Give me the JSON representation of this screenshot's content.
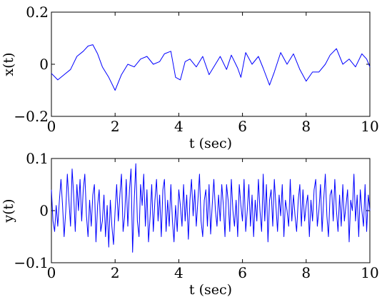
{
  "chart_data": [
    {
      "type": "line",
      "xlabel": "t (sec)",
      "ylabel": "x(t)",
      "xlim": [
        0,
        10
      ],
      "ylim": [
        -0.2,
        0.2
      ],
      "xticks": [
        0,
        2,
        4,
        6,
        8,
        10
      ],
      "yticks": [
        -0.2,
        0,
        0.2
      ],
      "xtick_labels": [
        "0",
        "2",
        "4",
        "6",
        "8",
        "10"
      ],
      "ytick_labels": [
        "−0.2",
        "0",
        "0.2"
      ],
      "grid": false,
      "line_color": "#0000ff",
      "series": [
        {
          "x": [
            0,
            0.2,
            0.4,
            0.6,
            0.8,
            1.0,
            1.15,
            1.3,
            1.45,
            1.6,
            1.8,
            2.0,
            2.2,
            2.4,
            2.6,
            2.8,
            3.0,
            3.2,
            3.4,
            3.55,
            3.75,
            3.9,
            4.05,
            4.2,
            4.35,
            4.55,
            4.75,
            4.95,
            5.15,
            5.3,
            5.5,
            5.65,
            5.85,
            5.95,
            6.1,
            6.3,
            6.5,
            6.65,
            6.85,
            7.0,
            7.2,
            7.4,
            7.6,
            7.8,
            8.0,
            8.2,
            8.4,
            8.6,
            8.75,
            8.95,
            9.15,
            9.35,
            9.55,
            9.75,
            9.9,
            10.0
          ],
          "y": [
            -0.035,
            -0.06,
            -0.04,
            -0.02,
            0.03,
            0.05,
            0.07,
            0.075,
            0.04,
            -0.01,
            -0.05,
            -0.1,
            -0.04,
            0.0,
            -0.01,
            0.02,
            0.03,
            0.0,
            0.01,
            0.04,
            0.05,
            -0.05,
            -0.06,
            0.01,
            0.02,
            -0.01,
            0.03,
            -0.04,
            0.0,
            0.03,
            -0.02,
            0.035,
            -0.015,
            -0.05,
            0.045,
            0.0,
            0.03,
            -0.015,
            -0.08,
            -0.03,
            0.045,
            0.0,
            0.04,
            -0.02,
            -0.065,
            -0.03,
            -0.03,
            0.0,
            0.035,
            0.06,
            0.0,
            0.02,
            -0.01,
            0.04,
            0.02,
            -0.01
          ]
        }
      ]
    },
    {
      "type": "line",
      "xlabel": "t (sec)",
      "ylabel": "y(t)",
      "xlim": [
        0,
        10
      ],
      "ylim": [
        -0.1,
        0.1
      ],
      "xticks": [
        0,
        2,
        4,
        6,
        8,
        10
      ],
      "yticks": [
        -0.1,
        0,
        0.1
      ],
      "xtick_labels": [
        "0",
        "2",
        "4",
        "6",
        "8",
        "10"
      ],
      "ytick_labels": [
        "−0.1",
        "0",
        "0.1"
      ],
      "grid": false,
      "line_color": "#0000ff",
      "series": [
        {
          "x": [
            0.0,
            0.05,
            0.1,
            0.15,
            0.2,
            0.25,
            0.3,
            0.35,
            0.4,
            0.45,
            0.5,
            0.55,
            0.6,
            0.65,
            0.7,
            0.75,
            0.8,
            0.85,
            0.9,
            0.95,
            1.0,
            1.05,
            1.1,
            1.15,
            1.2,
            1.25,
            1.3,
            1.35,
            1.4,
            1.45,
            1.5,
            1.55,
            1.6,
            1.65,
            1.7,
            1.75,
            1.8,
            1.85,
            1.9,
            1.95,
            2.0,
            2.05,
            2.1,
            2.15,
            2.2,
            2.25,
            2.3,
            2.35,
            2.4,
            2.45,
            2.5,
            2.55,
            2.6,
            2.65,
            2.7,
            2.75,
            2.8,
            2.85,
            2.9,
            2.95,
            3.0,
            3.05,
            3.1,
            3.15,
            3.2,
            3.25,
            3.3,
            3.35,
            3.4,
            3.45,
            3.5,
            3.55,
            3.6,
            3.65,
            3.7,
            3.75,
            3.8,
            3.85,
            3.9,
            3.95,
            4.0,
            4.05,
            4.1,
            4.15,
            4.2,
            4.25,
            4.3,
            4.35,
            4.4,
            4.45,
            4.5,
            4.55,
            4.6,
            4.65,
            4.7,
            4.75,
            4.8,
            4.85,
            4.9,
            4.95,
            5.0,
            5.05,
            5.1,
            5.15,
            5.2,
            5.25,
            5.3,
            5.35,
            5.4,
            5.45,
            5.5,
            5.55,
            5.6,
            5.65,
            5.7,
            5.75,
            5.8,
            5.85,
            5.9,
            5.95,
            6.0,
            6.05,
            6.1,
            6.15,
            6.2,
            6.25,
            6.3,
            6.35,
            6.4,
            6.45,
            6.5,
            6.55,
            6.6,
            6.65,
            6.7,
            6.75,
            6.8,
            6.85,
            6.9,
            6.95,
            7.0,
            7.05,
            7.1,
            7.15,
            7.2,
            7.25,
            7.3,
            7.35,
            7.4,
            7.45,
            7.5,
            7.55,
            7.6,
            7.65,
            7.7,
            7.75,
            7.8,
            7.85,
            7.9,
            7.95,
            8.0,
            8.05,
            8.1,
            8.15,
            8.2,
            8.25,
            8.3,
            8.35,
            8.4,
            8.45,
            8.5,
            8.55,
            8.6,
            8.65,
            8.7,
            8.75,
            8.8,
            8.85,
            8.9,
            8.95,
            9.0,
            9.05,
            9.1,
            9.15,
            9.2,
            9.25,
            9.3,
            9.35,
            9.4,
            9.45,
            9.5,
            9.55,
            9.6,
            9.65,
            9.7,
            9.75,
            9.8,
            9.85,
            9.9,
            9.95,
            10.0
          ],
          "y": [
            0.04,
            -0.02,
            -0.04,
            0.01,
            -0.03,
            0.02,
            0.06,
            0.01,
            -0.05,
            0.0,
            0.07,
            0.02,
            -0.03,
            0.08,
            0.03,
            -0.04,
            0.05,
            0.0,
            0.06,
            -0.02,
            0.04,
            0.07,
            -0.01,
            -0.05,
            0.02,
            -0.03,
            0.03,
            0.05,
            -0.06,
            0.01,
            0.04,
            -0.04,
            -0.02,
            0.03,
            -0.05,
            0.01,
            -0.07,
            0.02,
            -0.03,
            -0.065,
            0.0,
            0.05,
            -0.02,
            0.03,
            0.07,
            -0.04,
            -0.01,
            0.06,
            -0.03,
            0.04,
            0.08,
            -0.08,
            0.02,
            0.09,
            -0.02,
            -0.05,
            0.05,
            0.01,
            0.07,
            -0.03,
            0.04,
            -0.06,
            -0.01,
            0.05,
            -0.04,
            0.02,
            0.06,
            -0.02,
            0.03,
            -0.05,
            0.04,
            0.06,
            -0.04,
            0.02,
            -0.03,
            0.05,
            -0.02,
            -0.06,
            0.01,
            -0.04,
            0.04,
            0.01,
            -0.03,
            0.05,
            -0.02,
            0.03,
            -0.055,
            0.02,
            0.06,
            -0.01,
            0.04,
            -0.03,
            0.02,
            0.07,
            -0.02,
            -0.05,
            0.02,
            0.04,
            -0.03,
            0.05,
            -0.045,
            0.01,
            0.06,
            0.0,
            -0.03,
            0.03,
            -0.02,
            0.05,
            0.01,
            -0.05,
            0.05,
            0.02,
            -0.04,
            0.06,
            0.0,
            -0.03,
            0.02,
            -0.05,
            0.05,
            0.01,
            -0.02,
            0.06,
            -0.04,
            0.0,
            0.05,
            -0.03,
            0.03,
            -0.05,
            0.02,
            -0.02,
            0.06,
            0.0,
            -0.04,
            0.07,
            -0.02,
            0.05,
            -0.06,
            0.02,
            0.04,
            -0.03,
            0.06,
            0.01,
            -0.04,
            0.03,
            -0.01,
            0.05,
            -0.05,
            0.02,
            0.0,
            -0.03,
            0.06,
            -0.02,
            0.03,
            -0.01,
            -0.04,
            0.02,
            0.05,
            -0.03,
            0.04,
            -0.02,
            0.01,
            0.03,
            -0.05,
            0.02,
            -0.02,
            0.04,
            0.06,
            -0.03,
            0.0,
            0.05,
            -0.04,
            0.02,
            0.07,
            -0.01,
            -0.05,
            0.03,
            0.04,
            -0.02,
            0.06,
            0.0,
            -0.04,
            0.03,
            -0.03,
            0.05,
            -0.02,
            0.01,
            0.04,
            -0.06,
            0.02,
            0.0,
            0.07,
            -0.02,
            0.03,
            -0.05,
            0.04,
            0.0,
            -0.03,
            0.05,
            -0.04,
            0.03,
            0.0
          ]
        }
      ]
    }
  ]
}
